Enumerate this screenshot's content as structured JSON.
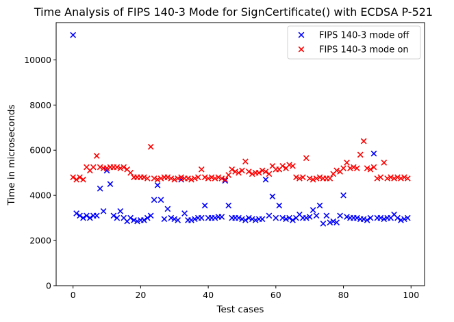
{
  "chart_data": {
    "type": "scatter",
    "title": "Time Analysis of FIPS 140-3 Mode for SignCertificate() with ECDSA P-521",
    "xlabel": "Test cases",
    "ylabel": "Time in microseconds",
    "xlim": [
      -5,
      104
    ],
    "ylim": [
      0,
      11650
    ],
    "xticks": [
      0,
      20,
      40,
      60,
      80,
      100
    ],
    "yticks": [
      0,
      2000,
      4000,
      6000,
      8000,
      10000
    ],
    "grid": false,
    "legend_position": "top-right",
    "marker": "x",
    "series": [
      {
        "name": "FIPS 140-3 mode off",
        "color": "#0000ff",
        "points": [
          [
            0,
            11100
          ],
          [
            1,
            3200
          ],
          [
            2,
            3100
          ],
          [
            3,
            3000
          ],
          [
            4,
            3100
          ],
          [
            5,
            3000
          ],
          [
            6,
            3100
          ],
          [
            7,
            3100
          ],
          [
            8,
            4300
          ],
          [
            9,
            3300
          ],
          [
            10,
            5100
          ],
          [
            11,
            4500
          ],
          [
            12,
            3100
          ],
          [
            13,
            3000
          ],
          [
            14,
            3300
          ],
          [
            15,
            3000
          ],
          [
            16,
            2850
          ],
          [
            17,
            3000
          ],
          [
            18,
            2900
          ],
          [
            19,
            2850
          ],
          [
            20,
            2900
          ],
          [
            21,
            2900
          ],
          [
            22,
            3000
          ],
          [
            23,
            3100
          ],
          [
            24,
            3800
          ],
          [
            25,
            4450
          ],
          [
            26,
            3800
          ],
          [
            27,
            2950
          ],
          [
            28,
            3400
          ],
          [
            29,
            3000
          ],
          [
            30,
            2950
          ],
          [
            31,
            2900
          ],
          [
            32,
            4700
          ],
          [
            33,
            3200
          ],
          [
            34,
            2900
          ],
          [
            35,
            2900
          ],
          [
            36,
            2950
          ],
          [
            37,
            3000
          ],
          [
            38,
            3000
          ],
          [
            39,
            3550
          ],
          [
            40,
            3000
          ],
          [
            41,
            3000
          ],
          [
            42,
            3000
          ],
          [
            43,
            3050
          ],
          [
            44,
            3050
          ],
          [
            45,
            4650
          ],
          [
            46,
            3550
          ],
          [
            47,
            3000
          ],
          [
            48,
            3000
          ],
          [
            49,
            3000
          ],
          [
            50,
            2950
          ],
          [
            51,
            2900
          ],
          [
            52,
            3000
          ],
          [
            53,
            2950
          ],
          [
            54,
            2900
          ],
          [
            55,
            2950
          ],
          [
            56,
            2950
          ],
          [
            57,
            4700
          ],
          [
            58,
            3100
          ],
          [
            59,
            3950
          ],
          [
            60,
            3000
          ],
          [
            61,
            3550
          ],
          [
            62,
            3000
          ],
          [
            63,
            2950
          ],
          [
            64,
            3000
          ],
          [
            65,
            2900
          ],
          [
            66,
            3000
          ],
          [
            67,
            3150
          ],
          [
            68,
            3000
          ],
          [
            69,
            3000
          ],
          [
            70,
            3050
          ],
          [
            71,
            3350
          ],
          [
            72,
            3100
          ],
          [
            73,
            3550
          ],
          [
            74,
            2750
          ],
          [
            75,
            3100
          ],
          [
            76,
            2800
          ],
          [
            77,
            2850
          ],
          [
            78,
            2800
          ],
          [
            79,
            3100
          ],
          [
            80,
            4000
          ],
          [
            81,
            3050
          ],
          [
            82,
            3000
          ],
          [
            83,
            3000
          ],
          [
            84,
            3000
          ],
          [
            85,
            2950
          ],
          [
            86,
            2950
          ],
          [
            87,
            2900
          ],
          [
            88,
            3000
          ],
          [
            89,
            5850
          ],
          [
            90,
            3000
          ],
          [
            91,
            3000
          ],
          [
            92,
            2950
          ],
          [
            93,
            3000
          ],
          [
            94,
            3000
          ],
          [
            95,
            3150
          ],
          [
            96,
            3000
          ],
          [
            97,
            2900
          ],
          [
            98,
            2950
          ],
          [
            99,
            3000
          ]
        ]
      },
      {
        "name": "FIPS 140-3 mode on",
        "color": "#ff0000",
        "points": [
          [
            0,
            4800
          ],
          [
            1,
            4700
          ],
          [
            2,
            4800
          ],
          [
            3,
            4700
          ],
          [
            4,
            5250
          ],
          [
            5,
            5100
          ],
          [
            6,
            5250
          ],
          [
            7,
            5750
          ],
          [
            8,
            5250
          ],
          [
            9,
            5200
          ],
          [
            10,
            5200
          ],
          [
            11,
            5250
          ],
          [
            12,
            5250
          ],
          [
            13,
            5250
          ],
          [
            14,
            5200
          ],
          [
            15,
            5250
          ],
          [
            16,
            5150
          ],
          [
            17,
            5000
          ],
          [
            18,
            4800
          ],
          [
            19,
            4800
          ],
          [
            20,
            4800
          ],
          [
            21,
            4800
          ],
          [
            22,
            4750
          ],
          [
            23,
            6150
          ],
          [
            24,
            4750
          ],
          [
            25,
            4700
          ],
          [
            26,
            4750
          ],
          [
            27,
            4800
          ],
          [
            28,
            4800
          ],
          [
            29,
            4750
          ],
          [
            30,
            4700
          ],
          [
            31,
            4750
          ],
          [
            32,
            4800
          ],
          [
            33,
            4750
          ],
          [
            34,
            4750
          ],
          [
            35,
            4700
          ],
          [
            36,
            4750
          ],
          [
            37,
            4800
          ],
          [
            38,
            5150
          ],
          [
            39,
            4800
          ],
          [
            40,
            4750
          ],
          [
            41,
            4800
          ],
          [
            42,
            4750
          ],
          [
            43,
            4800
          ],
          [
            44,
            4750
          ],
          [
            45,
            4700
          ],
          [
            46,
            4900
          ],
          [
            47,
            5150
          ],
          [
            48,
            5050
          ],
          [
            49,
            5000
          ],
          [
            50,
            5100
          ],
          [
            51,
            5500
          ],
          [
            52,
            5050
          ],
          [
            53,
            4950
          ],
          [
            54,
            5000
          ],
          [
            55,
            5000
          ],
          [
            56,
            5100
          ],
          [
            57,
            5050
          ],
          [
            58,
            4950
          ],
          [
            59,
            5300
          ],
          [
            60,
            5150
          ],
          [
            61,
            5150
          ],
          [
            62,
            5300
          ],
          [
            63,
            5200
          ],
          [
            64,
            5350
          ],
          [
            65,
            5300
          ],
          [
            66,
            4800
          ],
          [
            67,
            4750
          ],
          [
            68,
            4800
          ],
          [
            69,
            5650
          ],
          [
            70,
            4750
          ],
          [
            71,
            4700
          ],
          [
            72,
            4750
          ],
          [
            73,
            4800
          ],
          [
            74,
            4750
          ],
          [
            75,
            4750
          ],
          [
            76,
            4750
          ],
          [
            77,
            4950
          ],
          [
            78,
            5100
          ],
          [
            79,
            5050
          ],
          [
            80,
            5200
          ],
          [
            81,
            5450
          ],
          [
            82,
            5200
          ],
          [
            83,
            5250
          ],
          [
            84,
            5200
          ],
          [
            85,
            5800
          ],
          [
            86,
            6400
          ],
          [
            87,
            5200
          ],
          [
            88,
            5150
          ],
          [
            89,
            5250
          ],
          [
            90,
            4750
          ],
          [
            91,
            4800
          ],
          [
            92,
            5450
          ],
          [
            93,
            4750
          ],
          [
            94,
            4800
          ],
          [
            95,
            4750
          ],
          [
            96,
            4800
          ],
          [
            97,
            4750
          ],
          [
            98,
            4800
          ],
          [
            99,
            4750
          ]
        ]
      }
    ]
  }
}
